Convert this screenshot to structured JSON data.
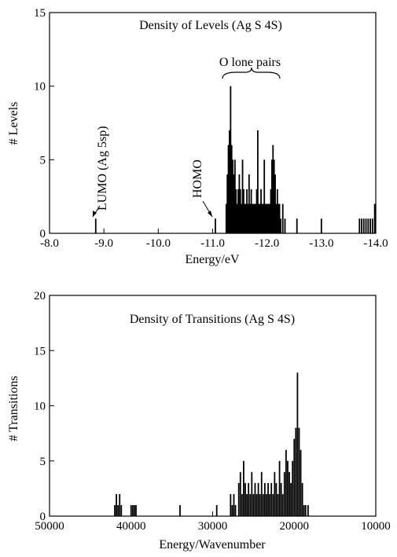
{
  "chart_data": [
    {
      "type": "bar",
      "title": "Density of Levels (Ag S 4S)",
      "xlabel": "Energy/eV",
      "ylabel": "# Levels",
      "xlim": [
        -8.0,
        -14.0
      ],
      "ylim": [
        0,
        15
      ],
      "x_reversed": true,
      "x_ticks": [
        "-8.0",
        "-9.0",
        "-10.0",
        "-11.0",
        "-12.0",
        "-13.0",
        "-14.0"
      ],
      "y_ticks": [
        "0",
        "5",
        "10",
        "15"
      ],
      "grid": false,
      "annotations": [
        {
          "text": "LUMO (Ag 5sp)",
          "x": -8.85,
          "y": 1
        },
        {
          "text": "HOMO",
          "x": -11.05,
          "y": 1
        },
        {
          "text": "O lone pairs",
          "x_range": [
            -11.25,
            -12.35
          ]
        }
      ],
      "bars": {
        "x": [
          -8.85,
          -11.05,
          -11.25,
          -11.27,
          -11.29,
          -11.31,
          -11.33,
          -11.35,
          -11.37,
          -11.39,
          -11.41,
          -11.43,
          -11.45,
          -11.47,
          -11.49,
          -11.51,
          -11.53,
          -11.55,
          -11.57,
          -11.59,
          -11.61,
          -11.63,
          -11.65,
          -11.67,
          -11.69,
          -11.71,
          -11.73,
          -11.75,
          -11.77,
          -11.79,
          -11.81,
          -11.83,
          -11.85,
          -11.87,
          -11.89,
          -11.91,
          -11.93,
          -11.95,
          -11.97,
          -11.99,
          -12.01,
          -12.03,
          -12.05,
          -12.07,
          -12.09,
          -12.11,
          -12.13,
          -12.15,
          -12.17,
          -12.19,
          -12.21,
          -12.23,
          -12.25,
          -12.29,
          -12.33,
          -12.55,
          -13.0,
          -13.7,
          -13.74,
          -13.78,
          -13.82,
          -13.86,
          -13.9,
          -13.94,
          -13.98
        ],
        "values": [
          1,
          1,
          2,
          4,
          6,
          7,
          10,
          6,
          5,
          4,
          5,
          3,
          2,
          3,
          4,
          3,
          2,
          5,
          3,
          2,
          2,
          3,
          2,
          4,
          2,
          3,
          2,
          2,
          2,
          2,
          3,
          7,
          2,
          2,
          3,
          2,
          2,
          5,
          2,
          2,
          2,
          2,
          2,
          3,
          5,
          6,
          5,
          4,
          2,
          3,
          2,
          2,
          1,
          2,
          1,
          1,
          1,
          1,
          1,
          1,
          1,
          1,
          1,
          1,
          2
        ],
        "color": "#000000"
      }
    },
    {
      "type": "bar",
      "title": "Density of Transitions (Ag S 4S)",
      "xlabel": "Energy/Wavenumber",
      "ylabel": "# Transitions",
      "xlim": [
        50000,
        10000
      ],
      "ylim": [
        0,
        20
      ],
      "x_reversed": true,
      "x_ticks": [
        "50000",
        "40000",
        "30000",
        "20000",
        "10000"
      ],
      "y_ticks": [
        "0",
        "5",
        "10",
        "15",
        "20"
      ],
      "grid": false,
      "bars": {
        "x": [
          42000,
          41800,
          41600,
          41400,
          41200,
          40000,
          39800,
          39600,
          39400,
          34000,
          29500,
          27800,
          27600,
          27400,
          27200,
          26800,
          26600,
          26400,
          26200,
          26000,
          25800,
          25600,
          25400,
          25200,
          25000,
          24800,
          24600,
          24400,
          24200,
          24000,
          23800,
          23600,
          23400,
          23200,
          23000,
          22800,
          22600,
          22400,
          22200,
          22000,
          21800,
          21600,
          21400,
          21200,
          21000,
          20800,
          20600,
          20400,
          20200,
          20000,
          19800,
          19600,
          19400,
          19200,
          19000,
          18800,
          18600,
          18300
        ],
        "values": [
          1,
          2,
          1,
          2,
          1,
          1,
          1,
          1,
          1,
          1,
          1,
          2,
          1,
          2,
          1,
          3,
          4,
          2,
          5,
          3,
          2,
          3,
          2,
          4,
          2,
          3,
          2,
          3,
          2,
          4,
          2,
          3,
          2,
          3,
          2,
          3,
          2,
          4,
          3,
          2,
          5,
          3,
          2,
          4,
          6,
          5,
          4,
          3,
          5,
          7,
          8,
          13,
          8,
          6,
          3,
          1,
          1,
          1
        ],
        "color": "#000000"
      }
    }
  ]
}
